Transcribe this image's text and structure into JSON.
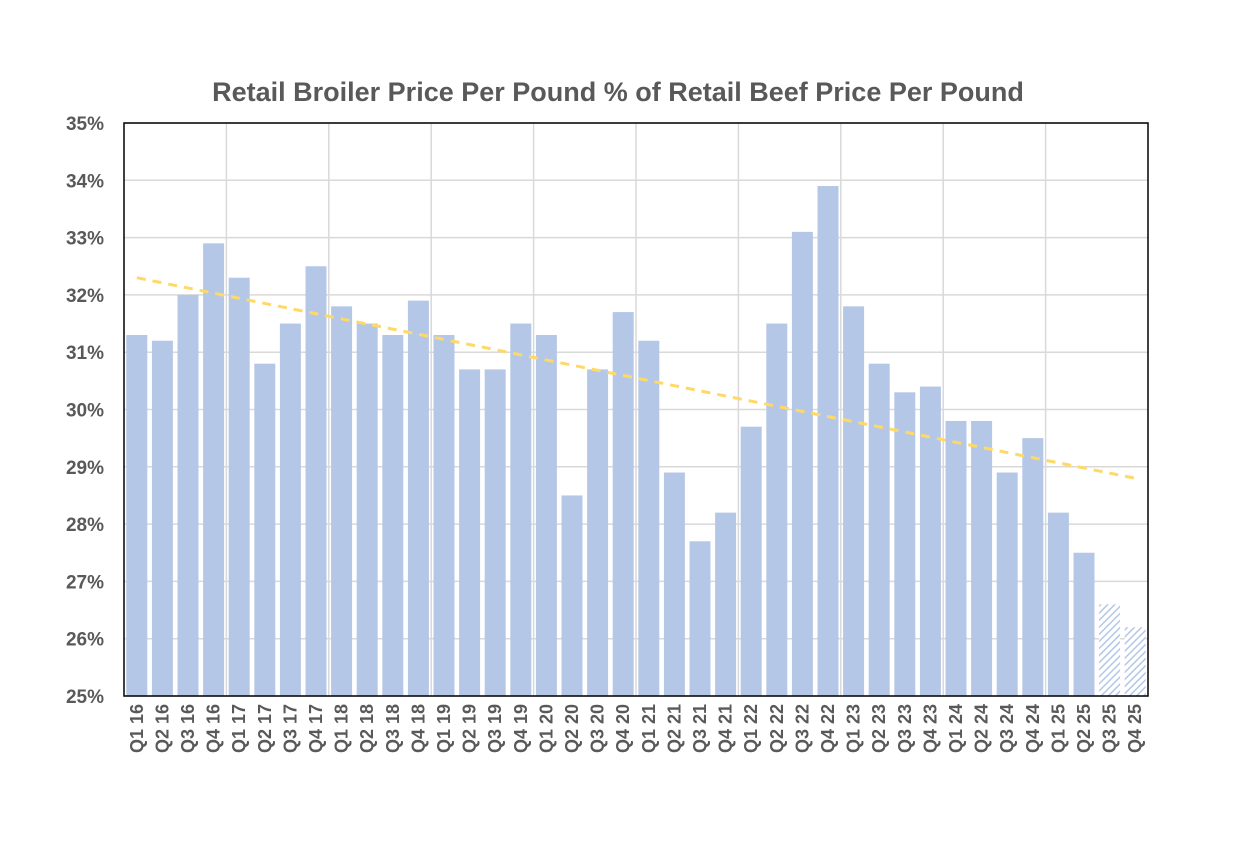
{
  "chart_data": {
    "type": "bar",
    "title": "Retail Broiler Price Per Pound % of Retail Beef Price Per Pound",
    "xlabel": "",
    "ylabel": "",
    "ylim": [
      25,
      35
    ],
    "yticks": [
      "25%",
      "26%",
      "27%",
      "28%",
      "29%",
      "30%",
      "31%",
      "32%",
      "33%",
      "34%",
      "35%"
    ],
    "grid": true,
    "legend": "none",
    "categories": [
      "Q1 16",
      "Q2 16",
      "Q3 16",
      "Q4 16",
      "Q1 17",
      "Q2 17",
      "Q3 17",
      "Q4 17",
      "Q1 18",
      "Q2 18",
      "Q3 18",
      "Q4 18",
      "Q1 19",
      "Q2 19",
      "Q3 19",
      "Q4 19",
      "Q1 20",
      "Q2 20",
      "Q3 20",
      "Q4 20",
      "Q1 21",
      "Q2 21",
      "Q3 21",
      "Q4 21",
      "Q1 22",
      "Q2 22",
      "Q3 22",
      "Q4 22",
      "Q1 23",
      "Q2 23",
      "Q3 23",
      "Q4 23",
      "Q1 24",
      "Q2 24",
      "Q3 24",
      "Q4 24",
      "Q1 25",
      "Q2 25",
      "Q3 25",
      "Q4 25"
    ],
    "values": [
      31.3,
      31.2,
      32.0,
      32.9,
      32.3,
      30.8,
      31.5,
      32.5,
      31.8,
      31.5,
      31.3,
      31.9,
      31.3,
      30.7,
      30.7,
      31.5,
      31.3,
      28.5,
      30.7,
      31.7,
      31.2,
      28.9,
      27.7,
      28.2,
      29.7,
      31.5,
      33.1,
      33.9,
      31.8,
      30.8,
      30.3,
      30.4,
      29.8,
      29.8,
      28.9,
      29.5,
      28.2,
      27.5,
      26.6,
      26.2
    ],
    "forecast_categories": [
      "Q3 25",
      "Q4 25"
    ],
    "trendline": {
      "style": "dashed",
      "start": 32.3,
      "end": 28.8
    },
    "colors": {
      "bar": "#b4c7e7",
      "forecast_hatch": "#b4c7e7",
      "trendline": "#ffd966",
      "grid": "#d9d9d9",
      "text": "#595959",
      "axis": "#000000"
    }
  }
}
